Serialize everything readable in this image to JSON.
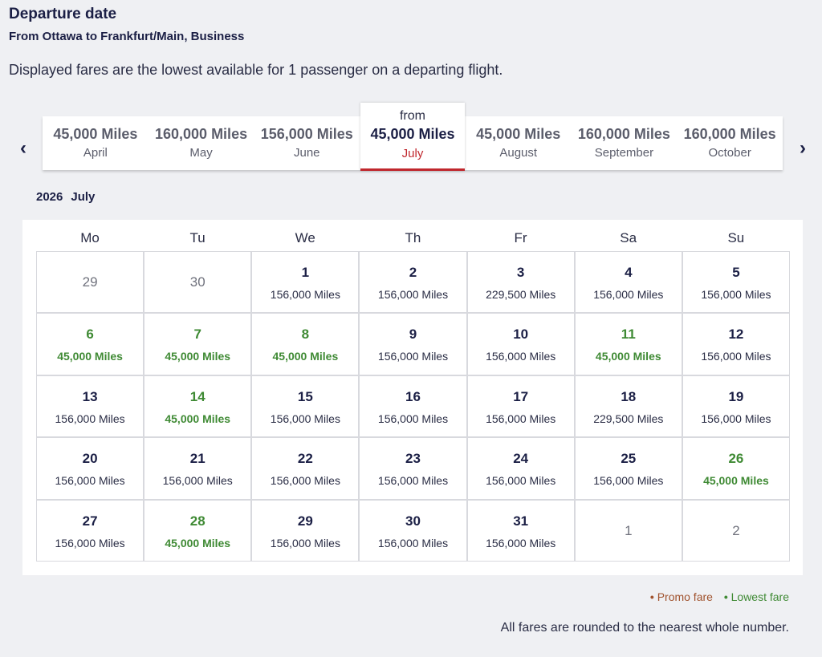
{
  "header": {
    "title": "Departure date",
    "subtitle": "From Ottawa to Frankfurt/Main, Business",
    "note": "Displayed fares are the lowest available for 1 passenger on a departing flight."
  },
  "months": [
    {
      "fare": "45,000 Miles",
      "month": "April"
    },
    {
      "fare": "160,000 Miles",
      "month": "May"
    },
    {
      "fare": "156,000 Miles",
      "month": "June"
    },
    {
      "prefix": "from",
      "fare": "45,000 Miles",
      "month": "July",
      "selected": true
    },
    {
      "fare": "45,000 Miles",
      "month": "August"
    },
    {
      "fare": "160,000 Miles",
      "month": "September"
    },
    {
      "fare": "160,000 Miles",
      "month": "October"
    }
  ],
  "calendar": {
    "year": 2026,
    "month": "July",
    "weekdays": [
      "Mo",
      "Tu",
      "We",
      "Th",
      "Fr",
      "Sa",
      "Su"
    ],
    "weeks": [
      [
        {
          "day": 29,
          "outside": true
        },
        {
          "day": 30,
          "outside": true
        },
        {
          "day": 1,
          "fare": "156,000 Miles"
        },
        {
          "day": 2,
          "fare": "156,000 Miles"
        },
        {
          "day": 3,
          "fare": "229,500 Miles"
        },
        {
          "day": 4,
          "fare": "156,000 Miles"
        },
        {
          "day": 5,
          "fare": "156,000 Miles"
        }
      ],
      [
        {
          "day": 6,
          "fare": "45,000 Miles",
          "lowest": true
        },
        {
          "day": 7,
          "fare": "45,000 Miles",
          "lowest": true
        },
        {
          "day": 8,
          "fare": "45,000 Miles",
          "lowest": true
        },
        {
          "day": 9,
          "fare": "156,000 Miles"
        },
        {
          "day": 10,
          "fare": "156,000 Miles"
        },
        {
          "day": 11,
          "fare": "45,000 Miles",
          "lowest": true
        },
        {
          "day": 12,
          "fare": "156,000 Miles"
        }
      ],
      [
        {
          "day": 13,
          "fare": "156,000 Miles"
        },
        {
          "day": 14,
          "fare": "45,000 Miles",
          "lowest": true
        },
        {
          "day": 15,
          "fare": "156,000 Miles"
        },
        {
          "day": 16,
          "fare": "156,000 Miles"
        },
        {
          "day": 17,
          "fare": "156,000 Miles"
        },
        {
          "day": 18,
          "fare": "229,500 Miles"
        },
        {
          "day": 19,
          "fare": "156,000 Miles"
        }
      ],
      [
        {
          "day": 20,
          "fare": "156,000 Miles"
        },
        {
          "day": 21,
          "fare": "156,000 Miles"
        },
        {
          "day": 22,
          "fare": "156,000 Miles"
        },
        {
          "day": 23,
          "fare": "156,000 Miles"
        },
        {
          "day": 24,
          "fare": "156,000 Miles"
        },
        {
          "day": 25,
          "fare": "156,000 Miles"
        },
        {
          "day": 26,
          "fare": "45,000 Miles",
          "lowest": true
        }
      ],
      [
        {
          "day": 27,
          "fare": "156,000 Miles"
        },
        {
          "day": 28,
          "fare": "45,000 Miles",
          "lowest": true
        },
        {
          "day": 29,
          "fare": "156,000 Miles"
        },
        {
          "day": 30,
          "fare": "156,000 Miles"
        },
        {
          "day": 31,
          "fare": "156,000 Miles"
        },
        {
          "day": 1,
          "outside": true
        },
        {
          "day": 2,
          "outside": true
        }
      ]
    ]
  },
  "legend": {
    "promo": {
      "label": "Promo fare",
      "color": "#a0522d"
    },
    "lowest": {
      "label": "Lowest fare",
      "color": "#3f8a34"
    }
  },
  "footer": "All fares are rounded to the nearest whole number."
}
